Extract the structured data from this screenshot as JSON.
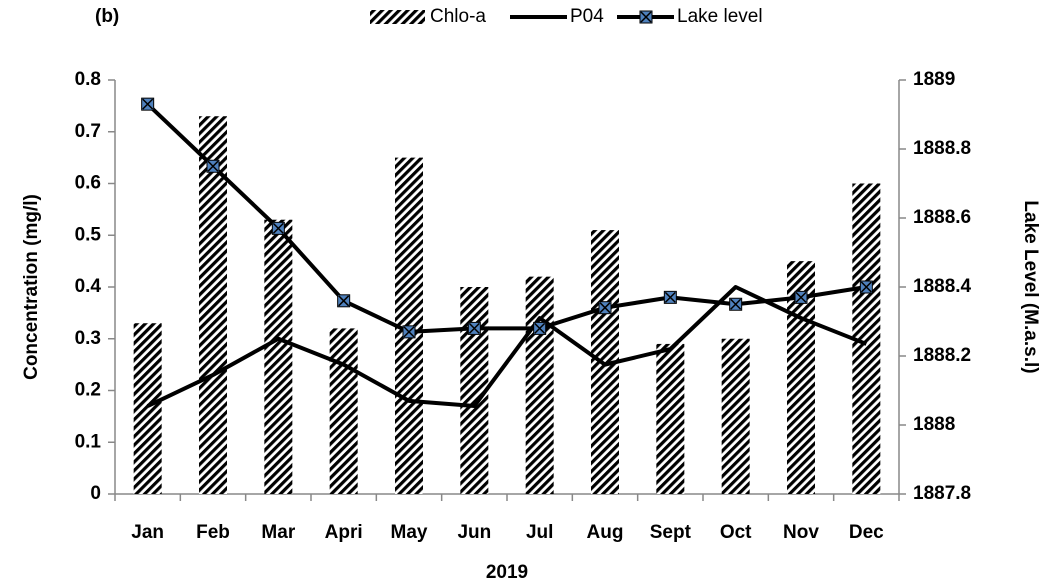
{
  "chart_data": {
    "type": "bar-line",
    "panel_label": "(b)",
    "x_label": "2019",
    "y_label": "Concentration (mg/l)",
    "y2_label": "Lake Level (M.a.s.l)",
    "categories": [
      "Jan",
      "Feb",
      "Mar",
      "Apri",
      "May",
      "Jun",
      "Jul",
      "Aug",
      "Sept",
      "Oct",
      "Nov",
      "Dec"
    ],
    "series": [
      {
        "name": "Chlo-a",
        "type": "bar",
        "color": "#000000",
        "hatch": true,
        "values": [
          0.33,
          0.73,
          0.53,
          0.32,
          0.65,
          0.4,
          0.42,
          0.51,
          0.29,
          0.3,
          0.45,
          0.6
        ]
      },
      {
        "name": "P04",
        "type": "line",
        "color": "#000000",
        "values": [
          0.17,
          0.23,
          0.3,
          0.25,
          0.18,
          0.17,
          0.34,
          0.25,
          0.28,
          0.4,
          0.34,
          0.29
        ]
      },
      {
        "name": "Lake level",
        "type": "line",
        "axis": "y2",
        "color": "#000000",
        "marker_color": "#4f81bd",
        "values": [
          1888.93,
          1888.75,
          1888.57,
          1888.36,
          1888.27,
          1888.28,
          1888.28,
          1888.34,
          1888.37,
          1888.35,
          1888.37,
          1888.4
        ]
      }
    ],
    "ylim": [
      0,
      0.8
    ],
    "yticks": [
      0,
      0.1,
      0.2,
      0.3,
      0.4,
      0.5,
      0.6,
      0.7,
      0.8
    ],
    "y2lim": [
      1887.8,
      1889
    ],
    "y2ticks": [
      1887.8,
      1888,
      1888.2,
      1888.4,
      1888.6,
      1888.8,
      1889
    ],
    "legend": "top",
    "grid": false
  }
}
